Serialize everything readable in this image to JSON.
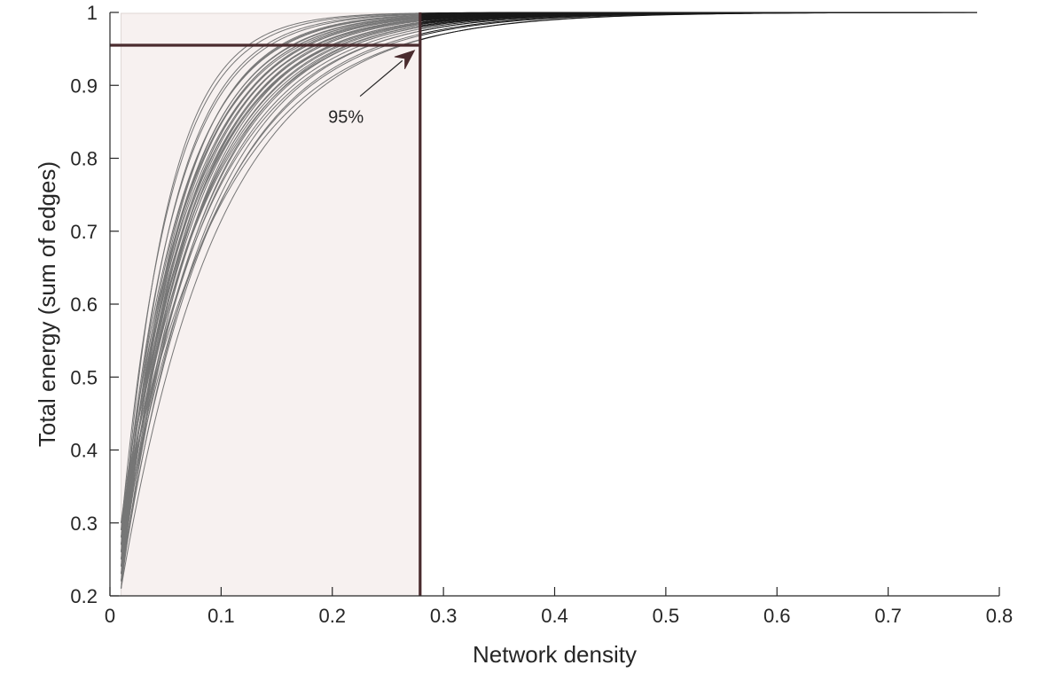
{
  "chart_data": {
    "type": "line",
    "title": "",
    "xlabel": "Network density",
    "ylabel": "Total energy (sum of edges)",
    "xlim": [
      0,
      0.8
    ],
    "ylim": [
      0.2,
      1
    ],
    "x_ticks": [
      0,
      0.1,
      0.2,
      0.3,
      0.4,
      0.5,
      0.6,
      0.7,
      0.8
    ],
    "x_tick_labels": [
      "0",
      "0.1",
      "0.2",
      "0.3",
      "0.4",
      "0.5",
      "0.6",
      "0.7",
      "0.8"
    ],
    "y_ticks": [
      0.2,
      0.3,
      0.4,
      0.5,
      0.6,
      0.7,
      0.8,
      0.9,
      1
    ],
    "y_tick_labels": [
      "0.2",
      "0.3",
      "0.4",
      "0.5",
      "0.6",
      "0.7",
      "0.8",
      "0.9",
      "1"
    ],
    "grid": false,
    "legend": "none",
    "curve_model": "1 - (1 - y0) * exp(-k * (x - 0.01))",
    "curve_x_start": 0.01,
    "curve_x_end": 0.78,
    "curves": [
      {
        "y0": 0.3,
        "k": 10.9
      },
      {
        "y0": 0.21,
        "k": 11.3
      },
      {
        "y0": 0.26,
        "k": 11.7
      },
      {
        "y0": 0.23,
        "k": 12.1
      },
      {
        "y0": 0.28,
        "k": 12.4
      },
      {
        "y0": 0.22,
        "k": 12.7
      },
      {
        "y0": 0.25,
        "k": 13.0
      },
      {
        "y0": 0.29,
        "k": 13.2
      },
      {
        "y0": 0.24,
        "k": 13.5
      },
      {
        "y0": 0.27,
        "k": 13.7
      },
      {
        "y0": 0.22,
        "k": 13.9
      },
      {
        "y0": 0.26,
        "k": 14.1
      },
      {
        "y0": 0.3,
        "k": 14.3
      },
      {
        "y0": 0.23,
        "k": 14.5
      },
      {
        "y0": 0.28,
        "k": 14.7
      },
      {
        "y0": 0.25,
        "k": 14.9
      },
      {
        "y0": 0.21,
        "k": 15.1
      },
      {
        "y0": 0.27,
        "k": 15.3
      },
      {
        "y0": 0.24,
        "k": 15.5
      },
      {
        "y0": 0.29,
        "k": 15.7
      },
      {
        "y0": 0.22,
        "k": 15.9
      },
      {
        "y0": 0.26,
        "k": 16.1
      },
      {
        "y0": 0.23,
        "k": 16.3
      },
      {
        "y0": 0.28,
        "k": 16.5
      },
      {
        "y0": 0.25,
        "k": 16.7
      },
      {
        "y0": 0.3,
        "k": 16.9
      },
      {
        "y0": 0.22,
        "k": 17.2
      },
      {
        "y0": 0.27,
        "k": 17.5
      },
      {
        "y0": 0.24,
        "k": 17.8
      },
      {
        "y0": 0.26,
        "k": 18.1
      },
      {
        "y0": 0.23,
        "k": 18.5
      },
      {
        "y0": 0.28,
        "k": 18.9
      },
      {
        "y0": 0.25,
        "k": 19.4
      },
      {
        "y0": 0.21,
        "k": 20.0
      },
      {
        "y0": 0.27,
        "k": 20.8
      },
      {
        "y0": 0.24,
        "k": 21.8
      },
      {
        "y0": 0.29,
        "k": 23.0
      },
      {
        "y0": 0.26,
        "k": 24.5
      }
    ],
    "curve_color_inside": "#767676",
    "curve_color_outside": "#1a1a1a",
    "threshold_x": 0.279,
    "threshold_y": 0.955,
    "threshold_color": "#4a2b2e",
    "shade_color": "#f7f1f0",
    "annotation": {
      "text": "95%",
      "arrow_from": [
        0.225,
        0.885
      ],
      "arrow_to": [
        0.274,
        0.948
      ]
    }
  }
}
